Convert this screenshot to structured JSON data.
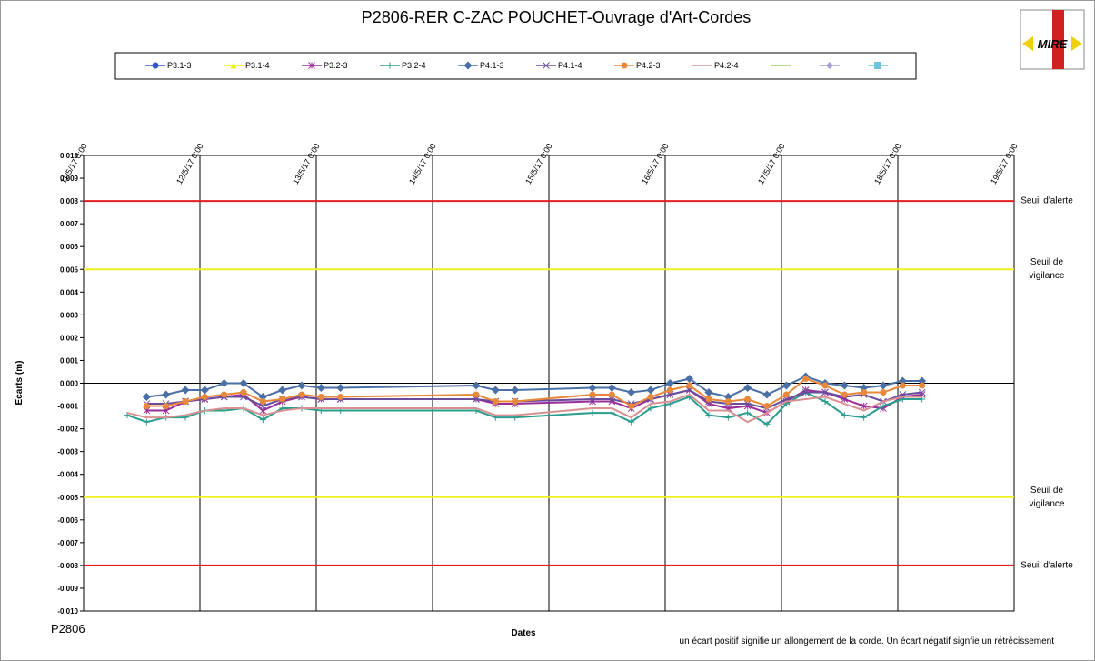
{
  "chart_data": {
    "type": "line",
    "title": "P2806-RER  C-ZAC POUCHET-Ouvrage  d'Art-Cordes",
    "y_label": "Ecarts (m)",
    "x_label": "Dates",
    "corner_label": "P2806",
    "footnote": "un écart positif signifie un allongement de la corde. Un écart négatif signfie un rétrécissement",
    "logo": "MIRE",
    "xlim": [
      "2017-05-11 00:00",
      "2017-05-19 00:00"
    ],
    "xticks": [
      {
        "value": "2017-05-11 00:00",
        "label": "11/5/17 0:00"
      },
      {
        "value": "2017-05-12 00:00",
        "label": "12/5/17 0:00"
      },
      {
        "value": "2017-05-13 00:00",
        "label": "13/5/17 0:00"
      },
      {
        "value": "2017-05-14 00:00",
        "label": "14/5/17 0:00"
      },
      {
        "value": "2017-05-15 00:00",
        "label": "15/5/17 0:00"
      },
      {
        "value": "2017-05-16 00:00",
        "label": "16/5/17 0:00"
      },
      {
        "value": "2017-05-17 00:00",
        "label": "17/5/17 0:00"
      },
      {
        "value": "2017-05-18 00:00",
        "label": "18/5/17 0:00"
      },
      {
        "value": "2017-05-19 00:00",
        "label": "19/5/17 0:00"
      }
    ],
    "ylim": [
      -0.01,
      0.01
    ],
    "yticks": [
      {
        "value": 0.01,
        "label": "0.010"
      },
      {
        "value": 0.009,
        "label": "0.009"
      },
      {
        "value": 0.008,
        "label": "0.008"
      },
      {
        "value": 0.007,
        "label": "0.007"
      },
      {
        "value": 0.006,
        "label": "0.006"
      },
      {
        "value": 0.005,
        "label": "0.005"
      },
      {
        "value": 0.004,
        "label": "0.004"
      },
      {
        "value": 0.003,
        "label": "0.003"
      },
      {
        "value": 0.002,
        "label": "0.002"
      },
      {
        "value": 0.001,
        "label": "0.001"
      },
      {
        "value": 0,
        "label": "0.000"
      },
      {
        "value": -0.001,
        "label": "-0.001"
      },
      {
        "value": -0.002,
        "label": "-0.002"
      },
      {
        "value": -0.003,
        "label": "-0.003"
      },
      {
        "value": -0.004,
        "label": "-0.004"
      },
      {
        "value": -0.005,
        "label": "-0.005"
      },
      {
        "value": -0.006,
        "label": "-0.006"
      },
      {
        "value": -0.007,
        "label": "-0.007"
      },
      {
        "value": -0.008,
        "label": "-0.008"
      },
      {
        "value": -0.009,
        "label": "-0.009"
      },
      {
        "value": -0.01,
        "label": "-0.010"
      }
    ],
    "thresholds": [
      {
        "value": 0.008,
        "label": "Seuil d'alerte",
        "color": "#e02020"
      },
      {
        "value": 0.005,
        "label": "Seuil de vigilance",
        "color": "#f0f020"
      },
      {
        "value": -0.005,
        "label": "Seuil de vigilance",
        "color": "#f0f020"
      },
      {
        "value": -0.008,
        "label": "Seuil d'alerte",
        "color": "#e02020"
      }
    ],
    "x": [
      "2017-05-11 09:00",
      "2017-05-11 13:00",
      "2017-05-11 17:00",
      "2017-05-11 21:00",
      "2017-05-12 01:00",
      "2017-05-12 05:00",
      "2017-05-12 09:00",
      "2017-05-12 13:00",
      "2017-05-12 17:00",
      "2017-05-12 21:00",
      "2017-05-13 01:00",
      "2017-05-13 05:00",
      "2017-05-14 09:00",
      "2017-05-14 13:00",
      "2017-05-14 17:00",
      "2017-05-15 09:00",
      "2017-05-15 13:00",
      "2017-05-15 17:00",
      "2017-05-15 21:00",
      "2017-05-16 01:00",
      "2017-05-16 05:00",
      "2017-05-16 09:00",
      "2017-05-16 13:00",
      "2017-05-16 17:00",
      "2017-05-16 21:00",
      "2017-05-17 01:00",
      "2017-05-17 05:00",
      "2017-05-17 09:00",
      "2017-05-17 13:00",
      "2017-05-17 17:00",
      "2017-05-17 21:00",
      "2017-05-18 01:00",
      "2017-05-18 05:00"
    ],
    "series": [
      {
        "name": "P3.1-3",
        "color": "#3355cc",
        "marker": "circle",
        "values": [
          null,
          null,
          null,
          null,
          null,
          null,
          null,
          null,
          null,
          null,
          null,
          null,
          null,
          null,
          null,
          null,
          null,
          null,
          null,
          null,
          null,
          null,
          null,
          null,
          null,
          null,
          null,
          null,
          null,
          null,
          null,
          null,
          null
        ]
      },
      {
        "name": "P3.1-4",
        "color": "#f0f020",
        "marker": "triangle",
        "values": [
          null,
          null,
          null,
          null,
          null,
          null,
          null,
          null,
          null,
          null,
          null,
          null,
          null,
          null,
          null,
          null,
          null,
          null,
          null,
          null,
          null,
          null,
          null,
          null,
          null,
          null,
          null,
          null,
          null,
          null,
          null,
          null,
          null
        ]
      },
      {
        "name": "P3.2-3",
        "color": "#9b2d9b",
        "marker": "star",
        "values": [
          null,
          -0.0012,
          -0.0012,
          -0.0008,
          -0.0007,
          -0.0006,
          -0.0005,
          -0.0012,
          -0.0008,
          -0.0006,
          -0.0007,
          -0.0007,
          -0.0007,
          -0.0009,
          -0.0009,
          -0.0008,
          -0.0008,
          -0.0011,
          -0.0007,
          -0.0005,
          -0.0003,
          -0.0009,
          -0.0011,
          -0.001,
          -0.0013,
          -0.0008,
          -0.0003,
          -0.0004,
          -0.0007,
          -0.001,
          -0.0011,
          -0.0006,
          -0.0005
        ]
      },
      {
        "name": "P3.2-4",
        "color": "#2a9d8f",
        "marker": "plus",
        "values": [
          -0.0014,
          -0.0017,
          -0.0015,
          -0.0015,
          -0.0012,
          -0.0012,
          -0.0011,
          -0.0016,
          -0.0011,
          -0.0011,
          -0.0012,
          -0.0012,
          -0.0012,
          -0.0015,
          -0.0015,
          -0.0013,
          -0.0013,
          -0.0017,
          -0.0011,
          -0.0009,
          -0.0006,
          -0.0014,
          -0.0015,
          -0.0013,
          -0.0018,
          -0.0009,
          -0.0004,
          -0.0008,
          -0.0014,
          -0.0015,
          -0.001,
          -0.0007,
          -0.0007
        ]
      },
      {
        "name": "P4.1-3",
        "color": "#4a6fa5",
        "marker": "diamond",
        "values": [
          null,
          -0.0006,
          -0.0005,
          -0.0003,
          -0.0003,
          0.0,
          0.0,
          -0.0006,
          -0.0003,
          -0.0001,
          -0.0002,
          -0.0002,
          -0.0001,
          -0.0003,
          -0.0003,
          -0.0002,
          -0.0002,
          -0.0004,
          -0.0003,
          0.0,
          0.0002,
          -0.0004,
          -0.0006,
          -0.0002,
          -0.0005,
          -0.0001,
          0.0003,
          0.0,
          -0.0001,
          -0.0002,
          -0.0001,
          0.0001,
          0.0001
        ]
      },
      {
        "name": "P4.1-4",
        "color": "#6a4c9c",
        "marker": "x",
        "values": [
          null,
          -0.0009,
          -0.0009,
          -0.0008,
          -0.0007,
          -0.0006,
          -0.0006,
          -0.001,
          -0.0007,
          -0.0006,
          -0.0007,
          -0.0007,
          -0.0007,
          -0.0008,
          -0.0008,
          -0.0007,
          -0.0007,
          -0.0009,
          -0.0007,
          -0.0005,
          -0.0003,
          -0.0008,
          -0.0009,
          -0.0009,
          -0.0011,
          -0.0007,
          -0.0004,
          -0.0004,
          -0.0006,
          -0.0005,
          -0.0008,
          -0.0005,
          -0.0004
        ]
      },
      {
        "name": "P4.2-3",
        "color": "#e8883a",
        "marker": "circle",
        "values": [
          null,
          -0.001,
          -0.001,
          -0.0008,
          -0.0006,
          -0.0005,
          -0.0004,
          -0.0008,
          -0.0007,
          -0.0005,
          -0.0006,
          -0.0006,
          -0.0005,
          -0.0008,
          -0.0008,
          -0.0005,
          -0.0005,
          -0.001,
          -0.0006,
          -0.0003,
          -0.0001,
          -0.0007,
          -0.0008,
          -0.0007,
          -0.001,
          -0.0005,
          0.0002,
          -0.0001,
          -0.0005,
          -0.0004,
          -0.0004,
          -0.0001,
          -0.0001
        ]
      },
      {
        "name": "P4.2-4",
        "color": "#d99090",
        "marker": "none",
        "values": [
          -0.0013,
          -0.0015,
          -0.0015,
          -0.0014,
          -0.0012,
          -0.0011,
          -0.0011,
          -0.0014,
          -0.0012,
          -0.0011,
          -0.0011,
          -0.0011,
          -0.0011,
          -0.0014,
          -0.0014,
          -0.0011,
          -0.0011,
          -0.0015,
          -0.0009,
          -0.0008,
          -0.0005,
          -0.0012,
          -0.0012,
          -0.0017,
          -0.0013,
          -0.0008,
          -0.0007,
          -0.0006,
          -0.0009,
          -0.0012,
          -0.0008,
          -0.0006,
          -0.0006
        ]
      }
    ],
    "grid": true
  }
}
